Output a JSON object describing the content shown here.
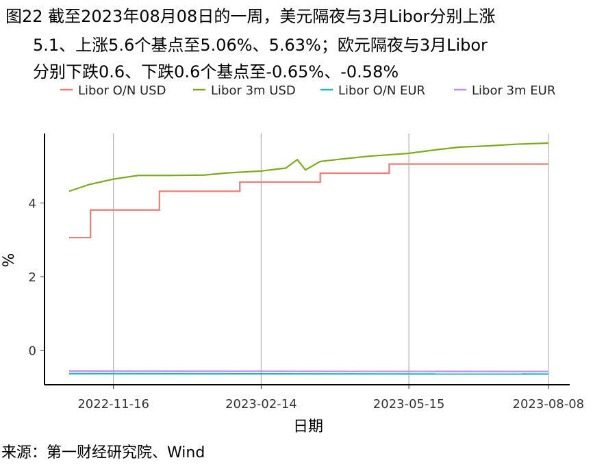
{
  "chart_data": {
    "type": "line",
    "title": [
      "图22  截至2023年08月08日的一周，美元隔夜与3月Libor分别上涨",
      "5.1、上涨5.6个基点至5.06%、5.63%；欧元隔夜与3月Libor",
      "分别下跌0.6、下跌0.6个基点至-0.65%、-0.58%"
    ],
    "x_label": "日期",
    "y_label": "%",
    "source": "来源：第一财经研究院、Wind",
    "xlim": [
      "2022-10-05",
      "2023-08-21"
    ],
    "xticks": [
      "2022-11-16",
      "2023-02-14",
      "2023-05-15",
      "2023-08-08"
    ],
    "ylim": [
      -0.94,
      5.89
    ],
    "yticks": [
      0,
      2,
      4
    ],
    "grid": true,
    "legend": "top",
    "series": [
      {
        "name": "Libor O/N USD",
        "color": "#f07a74",
        "x": [
          "2022-10-20",
          "2022-11-02",
          "2022-11-02",
          "2022-12-14",
          "2022-12-14",
          "2023-02-01",
          "2023-02-01",
          "2023-03-22",
          "2023-03-22",
          "2023-05-03",
          "2023-05-03",
          "2023-08-08"
        ],
        "values": [
          3.06,
          3.06,
          3.81,
          3.81,
          4.32,
          4.32,
          4.57,
          4.57,
          4.81,
          4.81,
          5.06,
          5.06
        ]
      },
      {
        "name": "Libor 3m USD",
        "color": "#7caa1a",
        "x": [
          "2022-10-20",
          "2022-11-01",
          "2022-11-16",
          "2022-12-01",
          "2022-12-20",
          "2023-01-10",
          "2023-01-25",
          "2023-02-14",
          "2023-03-01",
          "2023-03-08",
          "2023-03-13",
          "2023-03-22",
          "2023-04-05",
          "2023-04-20",
          "2023-05-15",
          "2023-06-01",
          "2023-06-15",
          "2023-07-01",
          "2023-07-20",
          "2023-08-08"
        ],
        "values": [
          4.32,
          4.5,
          4.65,
          4.75,
          4.75,
          4.76,
          4.82,
          4.87,
          4.95,
          5.18,
          4.9,
          5.13,
          5.2,
          5.27,
          5.35,
          5.45,
          5.52,
          5.55,
          5.6,
          5.63
        ]
      },
      {
        "name": "Libor O/N EUR",
        "color": "#1ab8c8",
        "x": [
          "2022-10-20",
          "2023-08-08"
        ],
        "values": [
          -0.64,
          -0.65
        ]
      },
      {
        "name": "Libor 3m EUR",
        "color": "#c28cf2",
        "x": [
          "2022-10-20",
          "2023-08-08"
        ],
        "values": [
          -0.57,
          -0.58
        ]
      }
    ]
  }
}
